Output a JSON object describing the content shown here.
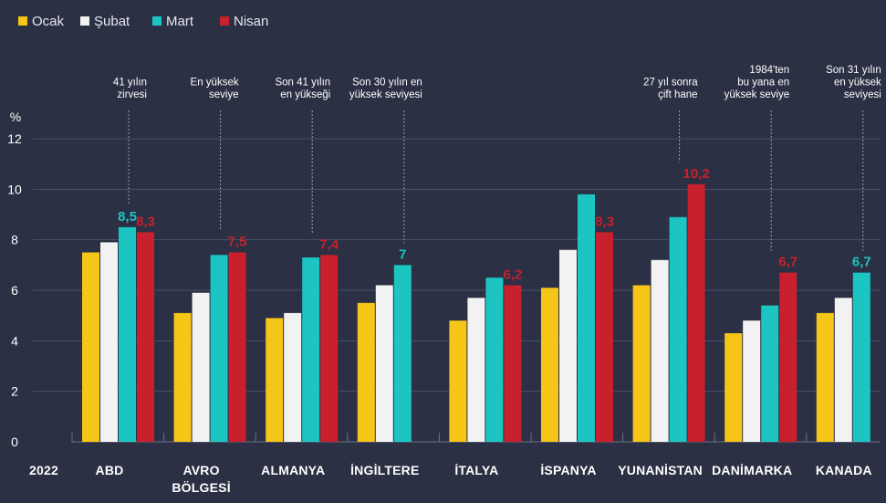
{
  "chart_data": {
    "type": "bar",
    "year_label": "2022",
    "unit_label": "%",
    "ylim": [
      0,
      12
    ],
    "yticks": [
      0,
      2,
      4,
      6,
      8,
      10,
      12
    ],
    "grid": true,
    "legend_position": "top-left",
    "categories": [
      [
        "ABD"
      ],
      [
        "AVRO",
        "BÖLGESİ"
      ],
      [
        "ALMANYA"
      ],
      [
        "İNGİLTERE"
      ],
      [
        "İTALYA"
      ],
      [
        "İSPANYA"
      ],
      [
        "YUNANİSTAN"
      ],
      [
        "DANİMARKA"
      ],
      [
        "KANADA"
      ]
    ],
    "series": [
      {
        "name": "Ocak",
        "color": "#f5c518",
        "values": [
          7.5,
          5.1,
          4.9,
          5.5,
          4.8,
          6.1,
          6.2,
          4.3,
          5.1
        ]
      },
      {
        "name": "Şubat",
        "color": "#f2f2f2",
        "values": [
          7.9,
          5.9,
          5.1,
          6.2,
          5.7,
          7.6,
          7.2,
          4.8,
          5.7
        ]
      },
      {
        "name": "Mart",
        "color": "#1cc4c2",
        "values": [
          8.5,
          7.4,
          7.3,
          7.0,
          6.5,
          9.8,
          8.9,
          5.4,
          6.7
        ]
      },
      {
        "name": "Nisan",
        "color": "#c8202c",
        "values": [
          8.3,
          7.5,
          7.4,
          null,
          6.2,
          8.3,
          10.2,
          6.7,
          null
        ]
      }
    ],
    "data_labels": [
      {
        "group": 0,
        "series": 2,
        "text": "8,5"
      },
      {
        "group": 0,
        "series": 3,
        "text": "8,3"
      },
      {
        "group": 1,
        "series": 3,
        "text": "7,5"
      },
      {
        "group": 2,
        "series": 3,
        "text": "7,4"
      },
      {
        "group": 3,
        "series": 2,
        "text": "7"
      },
      {
        "group": 4,
        "series": 3,
        "text": "6,2"
      },
      {
        "group": 5,
        "series": 3,
        "text": "8,3"
      },
      {
        "group": 6,
        "series": 3,
        "text": "10,2"
      },
      {
        "group": 7,
        "series": 3,
        "text": "6,7"
      },
      {
        "group": 8,
        "series": 2,
        "text": "6,7"
      }
    ],
    "annotations": [
      {
        "group": 0,
        "lines": [
          "41 yılın",
          "zirvesi"
        ]
      },
      {
        "group": 1,
        "lines": [
          "En yüksek",
          "seviye"
        ]
      },
      {
        "group": 2,
        "lines": [
          "Son 41 yılın",
          "en yükseği"
        ]
      },
      {
        "group": 3,
        "lines": [
          "Son 30 yılın en",
          "yüksek seviyesi"
        ]
      },
      {
        "group": 6,
        "lines": [
          "27 yıl  sonra",
          "çift hane"
        ]
      },
      {
        "group": 7,
        "lines": [
          "1984'ten",
          "bu yana en",
          "yüksek seviye"
        ]
      },
      {
        "group": 8,
        "lines": [
          "Son 31 yılın",
          "en yüksek",
          "seviyesi"
        ]
      }
    ]
  }
}
